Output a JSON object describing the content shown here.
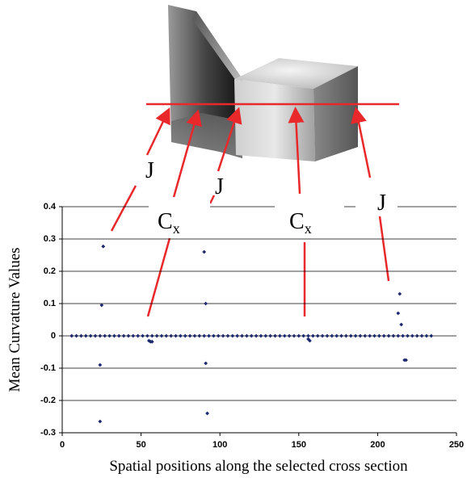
{
  "chart_data": {
    "type": "scatter",
    "xlabel": "Spatial positions along the selected cross section",
    "ylabel": "Mean Curvature Values",
    "xlim": [
      0,
      250
    ],
    "xticks": [
      0,
      50,
      100,
      150,
      200,
      250
    ],
    "ylim": [
      -0.3,
      0.4
    ],
    "yticks": [
      -0.3,
      -0.2,
      -0.1,
      0,
      0.1,
      0.2,
      0.3,
      0.4
    ],
    "grid": true,
    "series": [
      {
        "color": "#1f2a6e",
        "x": [
          6,
          9,
          12,
          15,
          18,
          21,
          24,
          27,
          30,
          33,
          36,
          39,
          42,
          45,
          48,
          51,
          54,
          57,
          60,
          63,
          66,
          69,
          72,
          75,
          78,
          81,
          84,
          87,
          90,
          93,
          96,
          99,
          102,
          105,
          108,
          111,
          114,
          117,
          120,
          123,
          126,
          129,
          132,
          135,
          138,
          141,
          144,
          147,
          150,
          153,
          156,
          159,
          162,
          165,
          168,
          171,
          174,
          177,
          180,
          183,
          186,
          189,
          192,
          195,
          198,
          201,
          204,
          207,
          210,
          213,
          216,
          219,
          222,
          225,
          228,
          231,
          234
        ],
        "values": [
          0,
          0,
          0,
          0,
          0,
          0,
          0,
          0,
          0,
          0,
          0,
          0,
          0,
          0,
          0,
          0,
          0,
          0,
          0,
          0,
          0,
          0,
          0,
          0,
          0,
          0,
          0,
          0,
          0,
          0,
          0,
          0,
          0,
          0,
          0,
          0,
          0,
          0,
          0,
          0,
          0,
          0,
          0,
          0,
          0,
          0,
          0,
          0,
          0,
          0,
          0,
          0,
          0,
          0,
          0,
          0,
          0,
          0,
          0,
          0,
          0,
          0,
          0,
          0,
          0,
          0,
          0,
          0,
          0,
          0,
          0,
          0,
          0,
          0,
          0,
          0,
          0
        ]
      },
      {
        "color": "#1f2a6e",
        "x": [
          24,
          24,
          25,
          26,
          55,
          56,
          57,
          90,
          91,
          91,
          92,
          156,
          157,
          213,
          214,
          215,
          217,
          218
        ],
        "values": [
          -0.265,
          -0.09,
          0.095,
          0.277,
          -0.015,
          -0.018,
          -0.018,
          0.26,
          0.1,
          -0.085,
          -0.24,
          -0.01,
          -0.015,
          0.07,
          0.13,
          0.035,
          -0.075,
          -0.075
        ]
      }
    ],
    "annotations": [
      {
        "label": "J"
      },
      {
        "label": "C",
        "subscript": "x"
      },
      {
        "label": "J"
      },
      {
        "label": "C",
        "subscript": "x"
      },
      {
        "label": "J"
      }
    ]
  }
}
